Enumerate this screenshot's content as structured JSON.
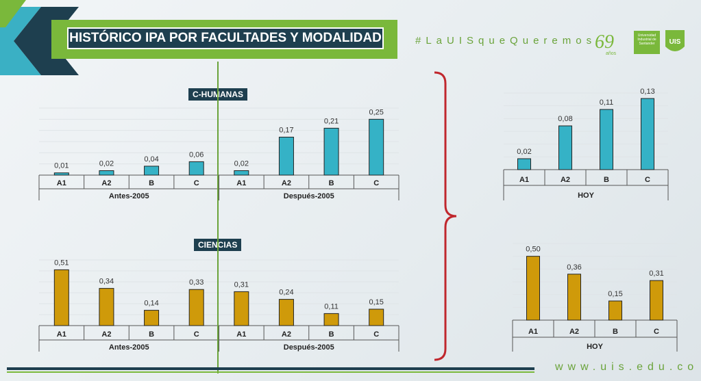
{
  "header": {
    "title": "HISTÓRICO IPA POR FACULTADES Y MODALIDAD",
    "hashtag": "#LaUISqueQueremos",
    "logo_years": "69",
    "logo_years_sub": "años",
    "logo_university": "Universidad Industrial de Santander",
    "seal_text": "UIS"
  },
  "footer": {
    "url": "www.uis.edu.co"
  },
  "colors": {
    "humanas": "#35b2c6",
    "ciencias": "#cf9a0a",
    "navy": "#1e3f4f",
    "green": "#7ab83b",
    "brace": "#c0272d"
  },
  "chart_data": [
    {
      "type": "bar",
      "title": "C-HUMANAS",
      "groups": [
        {
          "name": "Antes-2005",
          "categories": [
            "A1",
            "A2",
            "B",
            "C"
          ],
          "values": [
            0.01,
            0.02,
            0.04,
            0.06
          ],
          "labels": [
            "0,01",
            "0,02",
            "0,04",
            "0,06"
          ]
        },
        {
          "name": "Después-2005",
          "categories": [
            "A1",
            "A2",
            "B",
            "C"
          ],
          "values": [
            0.02,
            0.17,
            0.21,
            0.25
          ],
          "labels": [
            "0,02",
            "0,17",
            "0,21",
            "0,25"
          ]
        }
      ],
      "ylim": [
        0,
        0.3
      ],
      "grid": true
    },
    {
      "type": "bar",
      "title": "CIENCIAS",
      "groups": [
        {
          "name": "Antes-2005",
          "categories": [
            "A1",
            "A2",
            "B",
            "C"
          ],
          "values": [
            0.51,
            0.34,
            0.14,
            0.33
          ],
          "labels": [
            "0,51",
            "0,34",
            "0,14",
            "0,33"
          ]
        },
        {
          "name": "Después-2005",
          "categories": [
            "A1",
            "A2",
            "B",
            "C"
          ],
          "values": [
            0.31,
            0.24,
            0.11,
            0.15
          ],
          "labels": [
            "0,31",
            "0,24",
            "0,11",
            "0,15"
          ]
        }
      ],
      "ylim": [
        0,
        0.6
      ],
      "grid": true
    },
    {
      "type": "bar",
      "title": "",
      "groups": [
        {
          "name": "HOY",
          "categories": [
            "A1",
            "A2",
            "B",
            "C"
          ],
          "values": [
            0.02,
            0.08,
            0.11,
            0.13
          ],
          "labels": [
            "0,02",
            "0,08",
            "0,11",
            "0,13"
          ]
        }
      ],
      "ylim": [
        0,
        0.14
      ],
      "grid": true
    },
    {
      "type": "bar",
      "title": "",
      "groups": [
        {
          "name": "HOY",
          "categories": [
            "A1",
            "A2",
            "B",
            "C"
          ],
          "values": [
            0.5,
            0.36,
            0.15,
            0.31
          ],
          "labels": [
            "0,50",
            "0,36",
            "0,15",
            "0,31"
          ]
        }
      ],
      "ylim": [
        0,
        0.6
      ],
      "grid": true
    }
  ]
}
